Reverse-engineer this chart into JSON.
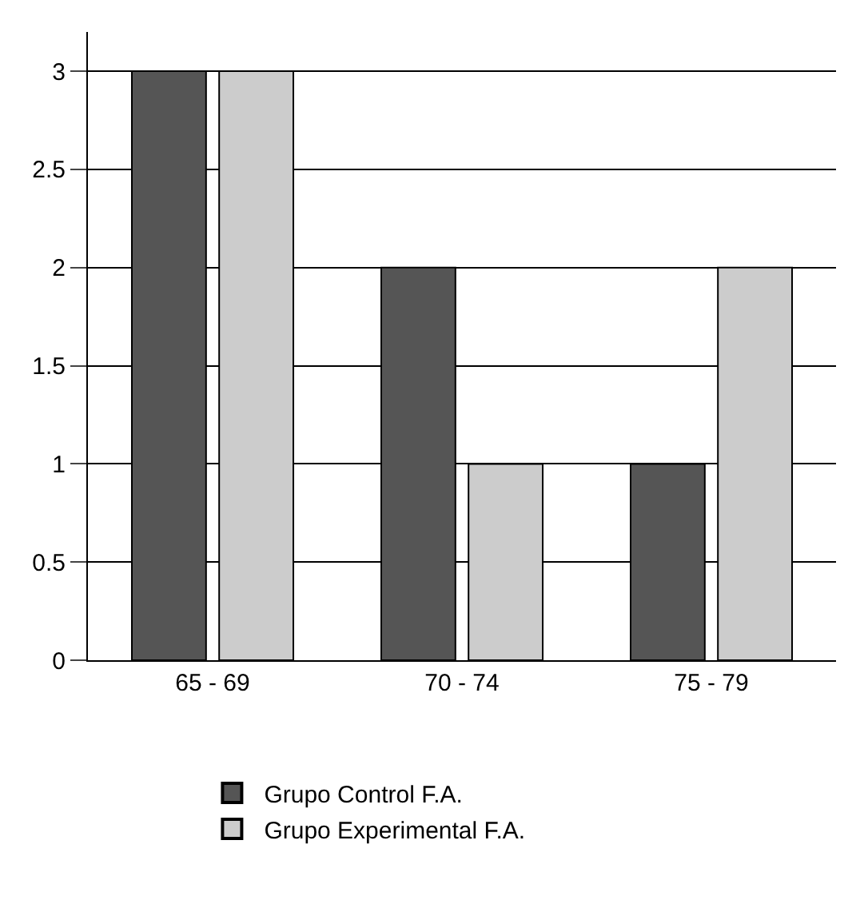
{
  "chart_data": {
    "type": "bar",
    "categories": [
      "65 - 69",
      "70 - 74",
      "75 - 79"
    ],
    "series": [
      {
        "name": "Grupo Control F.A.",
        "color": "#555555",
        "values": [
          3,
          2,
          1
        ]
      },
      {
        "name": "Grupo Experimental F.A.",
        "color": "#cccccc",
        "values": [
          3,
          1,
          2
        ]
      }
    ],
    "ylim": [
      0,
      3.2
    ],
    "yticks": [
      0,
      0.5,
      1,
      1.5,
      2,
      2.5,
      3
    ],
    "grid": "y",
    "legend": "bottom"
  }
}
